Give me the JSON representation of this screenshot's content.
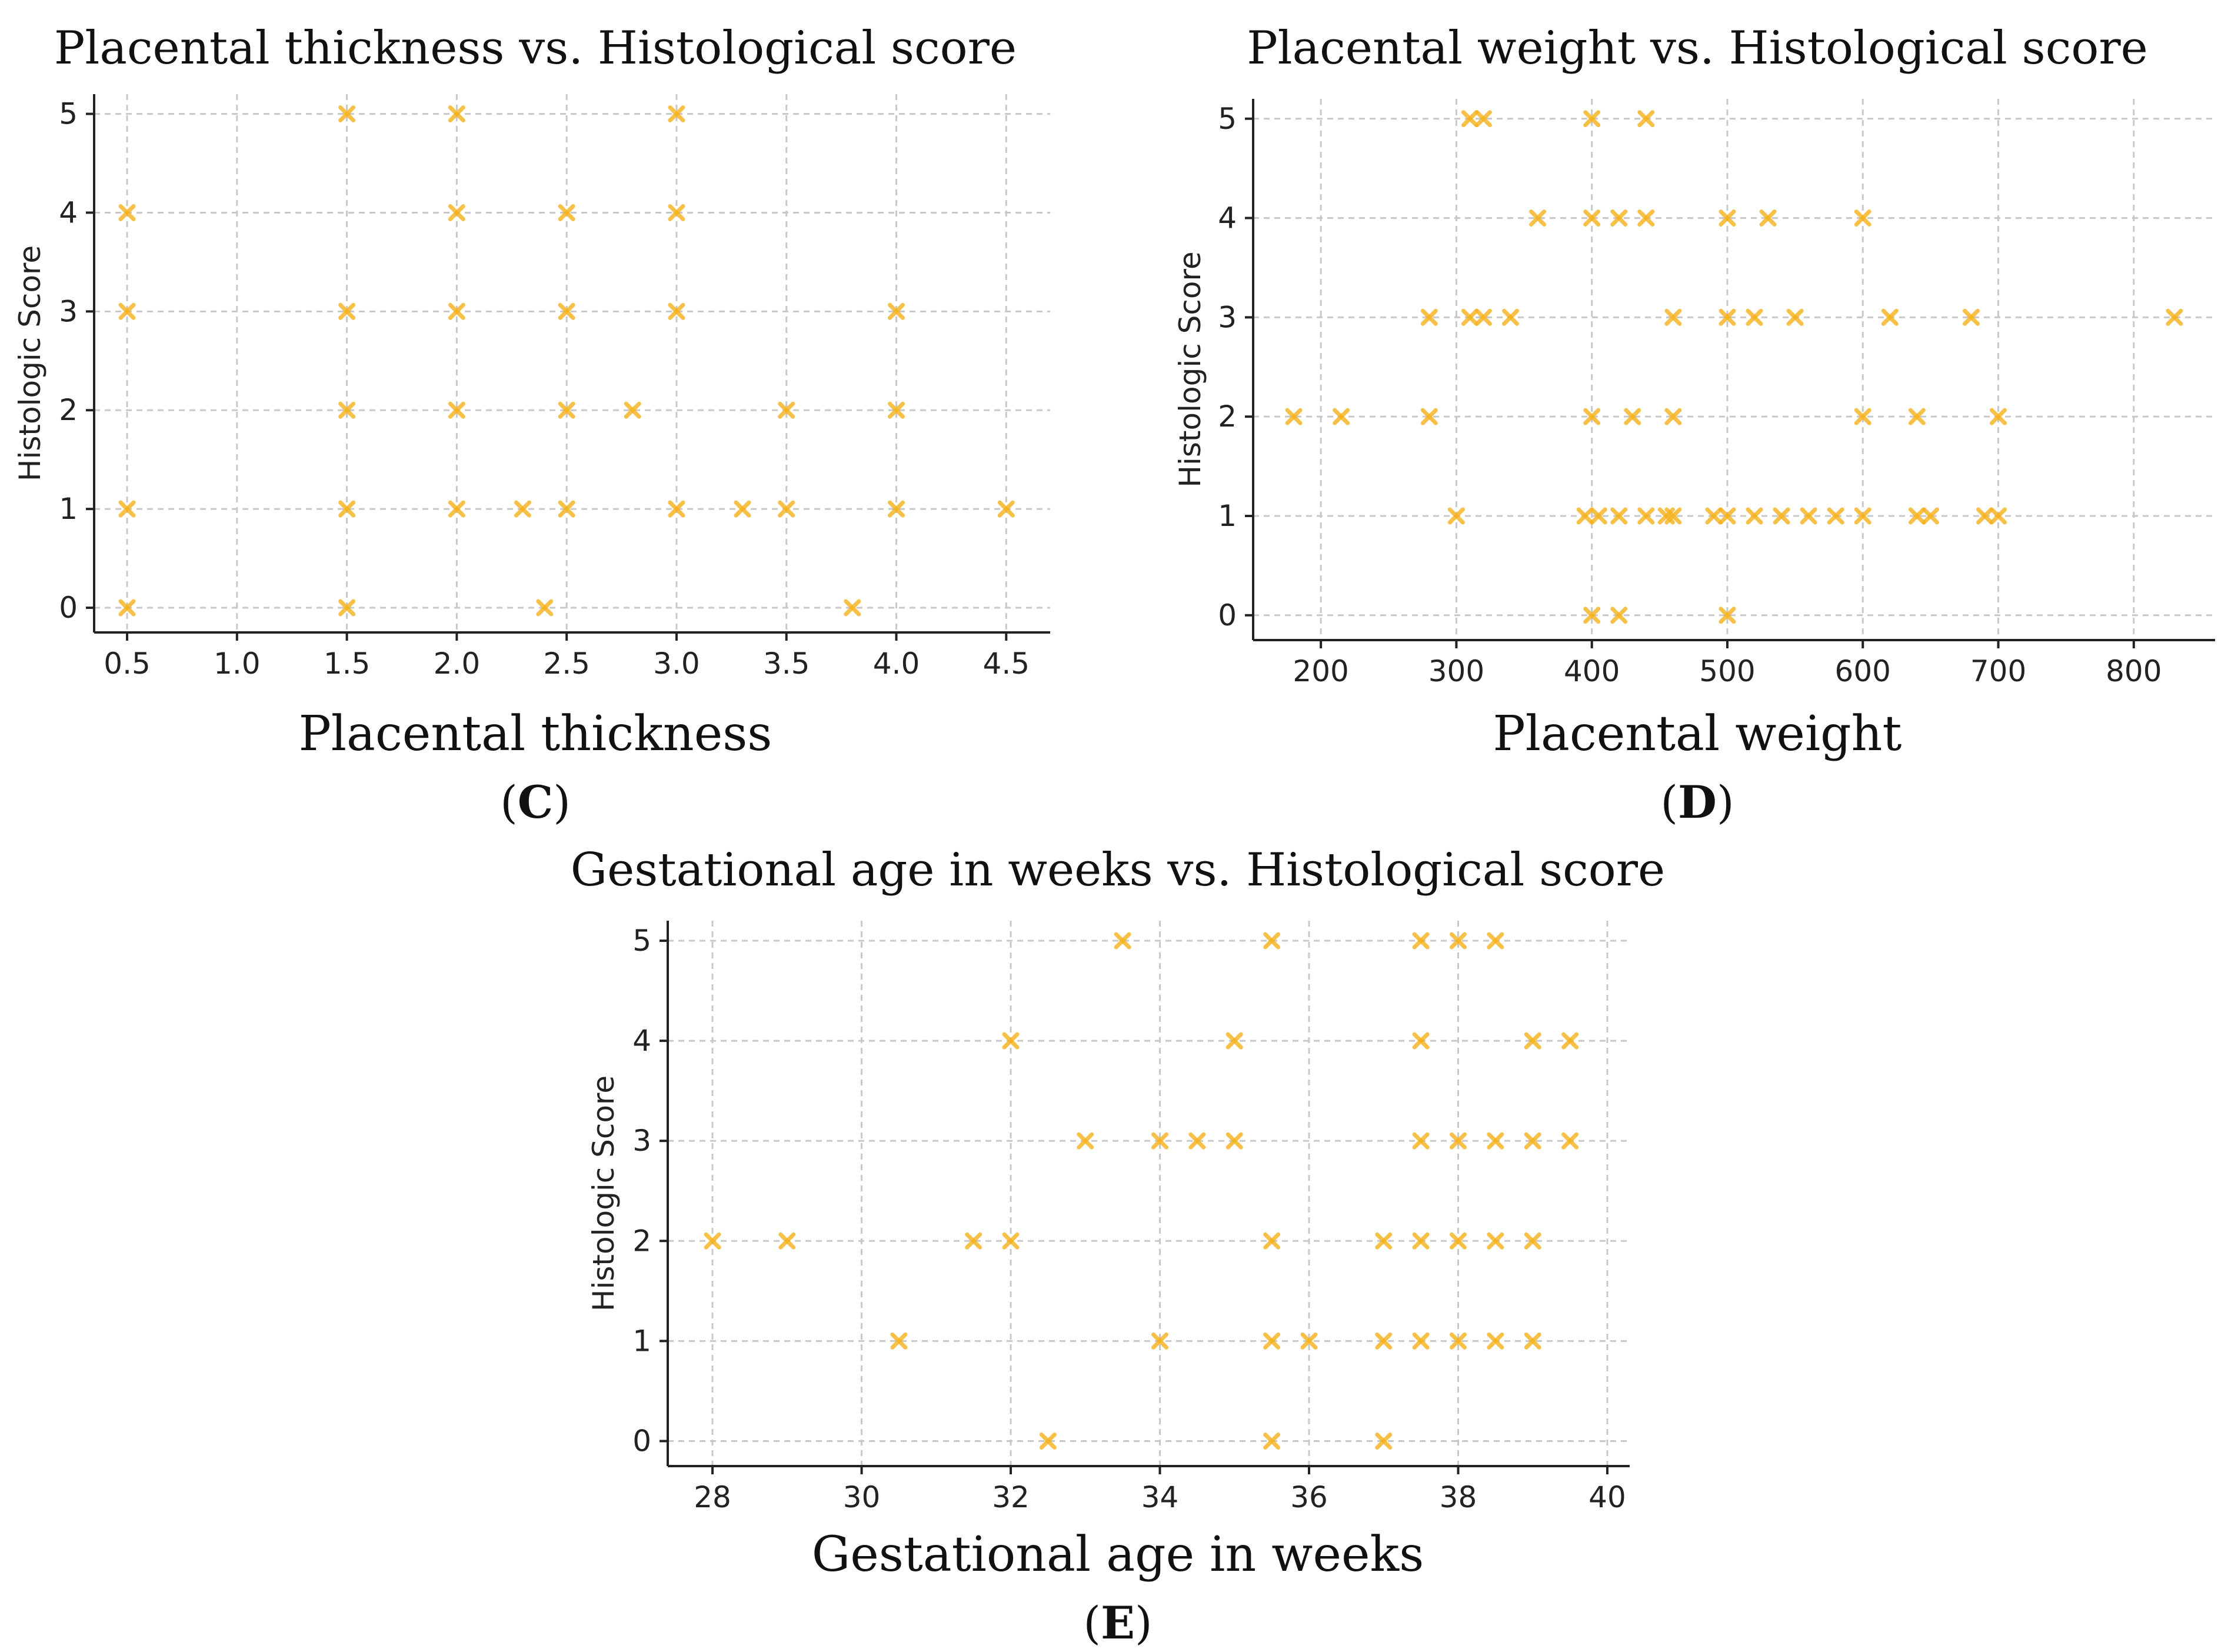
{
  "colors": {
    "marker": "#f5b21b",
    "grid": "#c8c8c8",
    "axis": "#222222"
  },
  "chart_data": [
    {
      "id": "C",
      "type": "scatter",
      "title": "Placental thickness vs. Histological score",
      "xlabel": "Placental thickness",
      "ylabel": "Histologic Score",
      "panel_label": "C",
      "xlim": [
        0.35,
        4.7
      ],
      "ylim": [
        -0.25,
        5.2
      ],
      "xticks": [
        0.5,
        1.0,
        1.5,
        2.0,
        2.5,
        3.0,
        3.5,
        4.0,
        4.5
      ],
      "xtick_labels": [
        "0.5",
        "1.0",
        "1.5",
        "2.0",
        "2.5",
        "3.0",
        "3.5",
        "4.0",
        "4.5"
      ],
      "yticks": [
        0,
        1,
        2,
        3,
        4,
        5
      ],
      "ytick_labels": [
        "0",
        "1",
        "2",
        "3",
        "4",
        "5"
      ],
      "marker": "x",
      "points": [
        [
          0.5,
          4
        ],
        [
          0.5,
          3
        ],
        [
          0.5,
          1
        ],
        [
          0.5,
          0
        ],
        [
          1.5,
          5
        ],
        [
          1.5,
          3
        ],
        [
          1.5,
          2
        ],
        [
          1.5,
          1
        ],
        [
          1.5,
          0
        ],
        [
          2.0,
          5
        ],
        [
          2.0,
          4
        ],
        [
          2.0,
          3
        ],
        [
          2.0,
          2
        ],
        [
          2.0,
          1
        ],
        [
          2.3,
          1
        ],
        [
          2.4,
          0
        ],
        [
          2.5,
          4
        ],
        [
          2.5,
          3
        ],
        [
          2.5,
          2
        ],
        [
          2.5,
          1
        ],
        [
          2.8,
          2
        ],
        [
          3.0,
          5
        ],
        [
          3.0,
          4
        ],
        [
          3.0,
          3
        ],
        [
          3.0,
          1
        ],
        [
          3.3,
          1
        ],
        [
          3.5,
          2
        ],
        [
          3.5,
          1
        ],
        [
          3.8,
          0
        ],
        [
          4.0,
          3
        ],
        [
          4.0,
          2
        ],
        [
          4.0,
          1
        ],
        [
          4.5,
          1
        ]
      ]
    },
    {
      "id": "D",
      "type": "scatter",
      "title": "Placental weight vs. Histological score",
      "xlabel": "Placental weight",
      "ylabel": "Histologic Score",
      "panel_label": "D",
      "xlim": [
        150,
        860
      ],
      "ylim": [
        -0.25,
        5.2
      ],
      "xticks": [
        200,
        300,
        400,
        500,
        600,
        700,
        800
      ],
      "xtick_labels": [
        "200",
        "300",
        "400",
        "500",
        "600",
        "700",
        "800"
      ],
      "yticks": [
        0,
        1,
        2,
        3,
        4,
        5
      ],
      "ytick_labels": [
        "0",
        "1",
        "2",
        "3",
        "4",
        "5"
      ],
      "marker": "x",
      "points": [
        [
          310,
          5
        ],
        [
          320,
          5
        ],
        [
          400,
          5
        ],
        [
          440,
          5
        ],
        [
          360,
          4
        ],
        [
          400,
          4
        ],
        [
          420,
          4
        ],
        [
          440,
          4
        ],
        [
          500,
          4
        ],
        [
          530,
          4
        ],
        [
          600,
          4
        ],
        [
          280,
          3
        ],
        [
          310,
          3
        ],
        [
          320,
          3
        ],
        [
          340,
          3
        ],
        [
          460,
          3
        ],
        [
          500,
          3
        ],
        [
          520,
          3
        ],
        [
          550,
          3
        ],
        [
          620,
          3
        ],
        [
          680,
          3
        ],
        [
          830,
          3
        ],
        [
          180,
          2
        ],
        [
          215,
          2
        ],
        [
          280,
          2
        ],
        [
          400,
          2
        ],
        [
          430,
          2
        ],
        [
          460,
          2
        ],
        [
          600,
          2
        ],
        [
          640,
          2
        ],
        [
          700,
          2
        ],
        [
          300,
          1
        ],
        [
          395,
          1
        ],
        [
          405,
          1
        ],
        [
          420,
          1
        ],
        [
          440,
          1
        ],
        [
          455,
          1
        ],
        [
          460,
          1
        ],
        [
          490,
          1
        ],
        [
          500,
          1
        ],
        [
          520,
          1
        ],
        [
          540,
          1
        ],
        [
          560,
          1
        ],
        [
          580,
          1
        ],
        [
          600,
          1
        ],
        [
          640,
          1
        ],
        [
          650,
          1
        ],
        [
          690,
          1
        ],
        [
          700,
          1
        ],
        [
          400,
          0
        ],
        [
          420,
          0
        ],
        [
          500,
          0
        ]
      ]
    },
    {
      "id": "E",
      "type": "scatter",
      "title": "Gestational age in weeks vs. Histological score",
      "xlabel": "Gestational age in weeks",
      "ylabel": "Histologic Score",
      "panel_label": "E",
      "xlim": [
        27.4,
        40.3
      ],
      "ylim": [
        -0.25,
        5.2
      ],
      "xticks": [
        28,
        30,
        32,
        34,
        36,
        38,
        40
      ],
      "xtick_labels": [
        "28",
        "30",
        "32",
        "34",
        "36",
        "38",
        "40"
      ],
      "yticks": [
        0,
        1,
        2,
        3,
        4,
        5
      ],
      "ytick_labels": [
        "0",
        "1",
        "2",
        "3",
        "4",
        "5"
      ],
      "marker": "x",
      "points": [
        [
          33.5,
          5
        ],
        [
          35.5,
          5
        ],
        [
          37.5,
          5
        ],
        [
          38,
          5
        ],
        [
          38.5,
          5
        ],
        [
          32,
          4
        ],
        [
          35,
          4
        ],
        [
          37.5,
          4
        ],
        [
          39,
          4
        ],
        [
          39.5,
          4
        ],
        [
          33,
          3
        ],
        [
          34,
          3
        ],
        [
          34.5,
          3
        ],
        [
          35,
          3
        ],
        [
          37.5,
          3
        ],
        [
          38,
          3
        ],
        [
          38.5,
          3
        ],
        [
          39,
          3
        ],
        [
          39.5,
          3
        ],
        [
          28,
          2
        ],
        [
          29,
          2
        ],
        [
          31.5,
          2
        ],
        [
          32,
          2
        ],
        [
          35.5,
          2
        ],
        [
          37,
          2
        ],
        [
          37.5,
          2
        ],
        [
          38,
          2
        ],
        [
          38.5,
          2
        ],
        [
          39,
          2
        ],
        [
          30.5,
          1
        ],
        [
          34,
          1
        ],
        [
          35.5,
          1
        ],
        [
          36,
          1
        ],
        [
          37,
          1
        ],
        [
          37.5,
          1
        ],
        [
          38,
          1
        ],
        [
          38.5,
          1
        ],
        [
          39,
          1
        ],
        [
          32.5,
          0
        ],
        [
          35.5,
          0
        ],
        [
          37,
          0
        ]
      ]
    }
  ]
}
